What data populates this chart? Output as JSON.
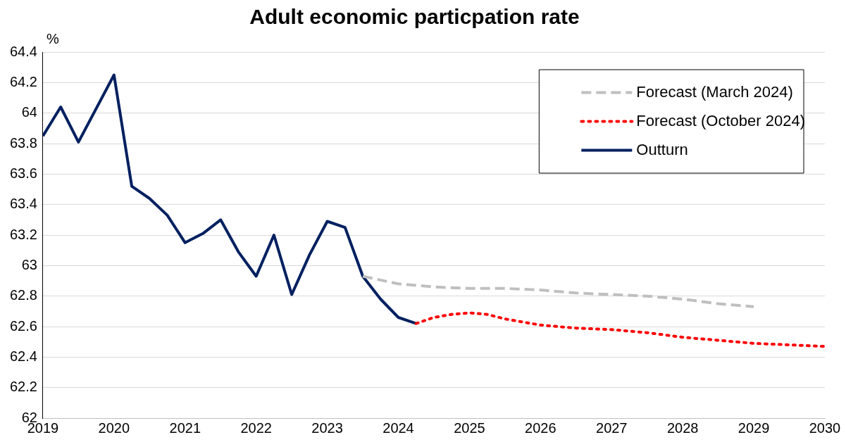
{
  "chart_data": {
    "type": "line",
    "title": "Adult economic particpation rate",
    "ylabel": "%",
    "xlim": [
      2019,
      2030
    ],
    "xticks": [
      2019,
      2020,
      2021,
      2022,
      2023,
      2024,
      2025,
      2026,
      2027,
      2028,
      2029,
      2030
    ],
    "ylim": [
      62,
      64.4
    ],
    "yticks": [
      62,
      62.2,
      62.4,
      62.6,
      62.8,
      63,
      63.2,
      63.4,
      63.6,
      63.8,
      64,
      64.2,
      64.4
    ],
    "grid": "y",
    "legend": "top right",
    "marker": "none",
    "series": [
      {
        "name": "Forecast (March 2024)",
        "color": "#bfbfbf",
        "line_style": "dashed",
        "x": [
          2023.5,
          2024,
          2024.5,
          2025,
          2025.5,
          2026,
          2026.5,
          2027,
          2027.5,
          2028,
          2028.5,
          2029
        ],
        "values": [
          62.93,
          62.88,
          62.86,
          62.85,
          62.85,
          62.84,
          62.82,
          62.81,
          62.8,
          62.78,
          62.75,
          62.73
        ]
      },
      {
        "name": "Forecast (October 2024)",
        "color": "#ff0000",
        "line_style": "dotted",
        "x": [
          2024.25,
          2024.5,
          2024.75,
          2025,
          2025.25,
          2025.5,
          2026,
          2026.5,
          2027,
          2027.5,
          2028,
          2028.5,
          2029,
          2029.5,
          2030
        ],
        "values": [
          62.62,
          62.66,
          62.68,
          62.69,
          62.68,
          62.65,
          62.61,
          62.59,
          62.58,
          62.56,
          62.53,
          62.51,
          62.49,
          62.48,
          62.47
        ]
      },
      {
        "name": "Outturn",
        "color": "#002060",
        "line_style": "solid",
        "x": [
          2019,
          2019.25,
          2019.5,
          2019.75,
          2020,
          2020.25,
          2020.5,
          2020.75,
          2021,
          2021.25,
          2021.5,
          2021.75,
          2022,
          2022.25,
          2022.5,
          2022.75,
          2023,
          2023.25,
          2023.5,
          2023.75,
          2024,
          2024.25
        ],
        "values": [
          63.85,
          64.04,
          63.81,
          64.03,
          64.25,
          63.52,
          63.44,
          63.33,
          63.15,
          63.21,
          63.3,
          63.09,
          62.93,
          63.2,
          62.81,
          63.07,
          63.29,
          63.25,
          62.93,
          62.78,
          62.66,
          62.62
        ]
      }
    ]
  }
}
